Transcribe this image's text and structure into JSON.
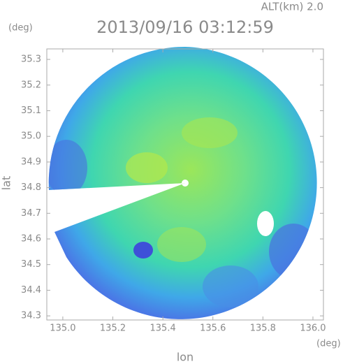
{
  "chart_data": {
    "type": "heatmap",
    "title": "2013/09/16 03:12:59",
    "annotation": "ALT(km) 2.0",
    "ylabel_unit": "(deg)",
    "xlabel_unit": "(deg)",
    "xlabel": "lon",
    "ylabel": "lat",
    "xlim": [
      134.936,
      136.042
    ],
    "ylim": [
      34.284,
      35.341
    ],
    "xticks": [
      {
        "value": 135,
        "label": "135.0"
      },
      135.2,
      135.4,
      135.6,
      135.8,
      {
        "value": 136,
        "label": "136.0"
      }
    ],
    "yticks": [
      35.3,
      35.2,
      35.1,
      {
        "value": 35,
        "label": "35.0"
      },
      34.9,
      34.8,
      34.7,
      34.6,
      34.5,
      34.4,
      34.3
    ],
    "frame_color": "#aaaaaa"
  }
}
